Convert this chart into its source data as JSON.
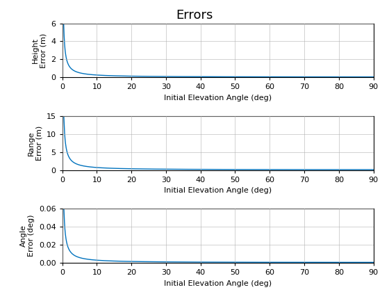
{
  "title": "Errors",
  "subplots": [
    {
      "xlabel": "Initial Elevation Angle (deg)",
      "ylabel": "Height\nError (m)",
      "xlim": [
        0,
        90
      ],
      "ylim": [
        0,
        6
      ],
      "yticks": [
        0,
        2,
        4,
        6
      ],
      "xticks": [
        0,
        10,
        20,
        30,
        40,
        50,
        60,
        70,
        80,
        90
      ],
      "formula": "height_error",
      "line_color": "#0072BD",
      "scale": 5.0
    },
    {
      "xlabel": "Initial Elevation Angle (deg)",
      "ylabel": "Range\nError (m)",
      "xlim": [
        0,
        90
      ],
      "ylim": [
        0,
        15
      ],
      "yticks": [
        0,
        5,
        10,
        15
      ],
      "xticks": [
        0,
        10,
        20,
        30,
        40,
        50,
        60,
        70,
        80,
        90
      ],
      "formula": "range_error",
      "line_color": "#0072BD",
      "scale": 14.0
    },
    {
      "xlabel": "Initial Elevation Angle (deg)",
      "ylabel": "Angle\nError (deg)",
      "xlim": [
        0,
        90
      ],
      "ylim": [
        0,
        0.06
      ],
      "yticks": [
        0,
        0.02,
        0.04,
        0.06
      ],
      "xticks": [
        0,
        10,
        20,
        30,
        40,
        50,
        60,
        70,
        80,
        90
      ],
      "formula": "angle_error",
      "line_color": "#0072BD",
      "scale": 0.058
    }
  ],
  "background_color": "#ffffff",
  "grid_color": "#b0b0b0",
  "title_fontsize": 13,
  "axis_fontsize": 8,
  "tick_fontsize": 8
}
